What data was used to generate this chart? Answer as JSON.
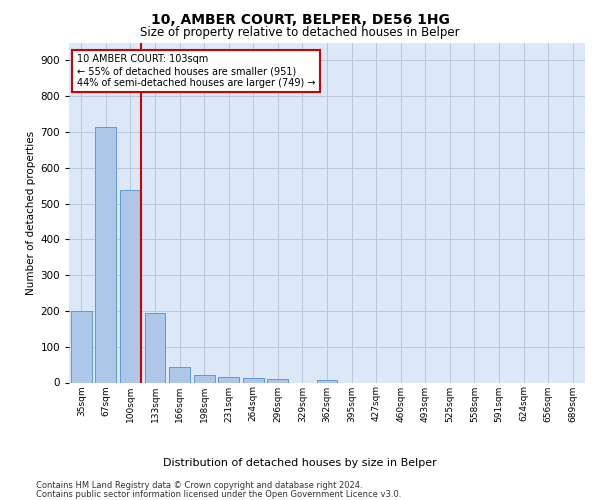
{
  "title": "10, AMBER COURT, BELPER, DE56 1HG",
  "subtitle": "Size of property relative to detached houses in Belper",
  "xlabel": "Distribution of detached houses by size in Belper",
  "ylabel": "Number of detached properties",
  "annotation_lines": [
    "10 AMBER COURT: 103sqm",
    "← 55% of detached houses are smaller (951)",
    "44% of semi-detached houses are larger (749) →"
  ],
  "bar_categories": [
    "35sqm",
    "67sqm",
    "100sqm",
    "133sqm",
    "166sqm",
    "198sqm",
    "231sqm",
    "264sqm",
    "296sqm",
    "329sqm",
    "362sqm",
    "395sqm",
    "427sqm",
    "460sqm",
    "493sqm",
    "525sqm",
    "558sqm",
    "591sqm",
    "624sqm",
    "656sqm",
    "689sqm"
  ],
  "bar_values": [
    200,
    714,
    537,
    193,
    42,
    20,
    15,
    13,
    10,
    0,
    8,
    0,
    0,
    0,
    0,
    0,
    0,
    0,
    0,
    0,
    0
  ],
  "bar_color": "#aec6e8",
  "bar_edge_color": "#5b9bd5",
  "red_line_color": "#cc0000",
  "annotation_box_color": "#cc0000",
  "background_color": "#dce8f8",
  "grid_color": "#b8c8dc",
  "ylim": [
    0,
    950
  ],
  "yticks": [
    0,
    100,
    200,
    300,
    400,
    500,
    600,
    700,
    800,
    900
  ],
  "footer_line1": "Contains HM Land Registry data © Crown copyright and database right 2024.",
  "footer_line2": "Contains public sector information licensed under the Open Government Licence v3.0."
}
